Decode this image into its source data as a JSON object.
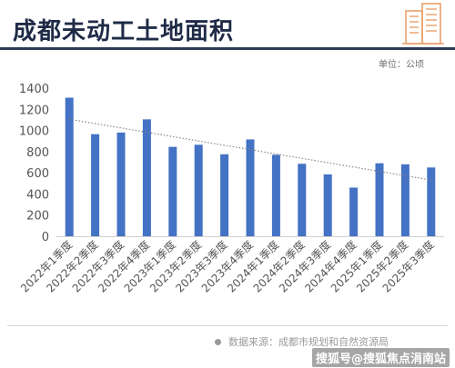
{
  "header": {
    "title": "成都未动工土地面积",
    "unit": "单位：公顷",
    "logo_icon": "building-logo-icon"
  },
  "chart_data": {
    "type": "bar",
    "title": "",
    "xlabel": "",
    "ylabel": "",
    "ylim": [
      0,
      1400
    ],
    "yticks": [
      0,
      200,
      400,
      600,
      800,
      1000,
      1200,
      1400
    ],
    "grid": false,
    "bar_color": "#4472c4",
    "trendline": {
      "type": "linear",
      "style": "dotted",
      "color": "#7f7f7f"
    },
    "categories": [
      "2022年1季度",
      "2022年2季度",
      "2022年3季度",
      "2022年4季度",
      "2023年1季度",
      "2023年2季度",
      "2023年3季度",
      "2023年4季度",
      "2024年1季度",
      "2024年2季度",
      "2024年3季度",
      "2024年4季度",
      "2025年1季度",
      "2025年2季度",
      "2025年3季度"
    ],
    "values": [
      1310,
      965,
      980,
      1105,
      845,
      865,
      775,
      915,
      770,
      685,
      585,
      460,
      690,
      680,
      650
    ]
  },
  "footer": {
    "source": "数据来源：成都市规划和自然资源局",
    "watermark": "搜狐号@搜狐焦点涓南站"
  }
}
